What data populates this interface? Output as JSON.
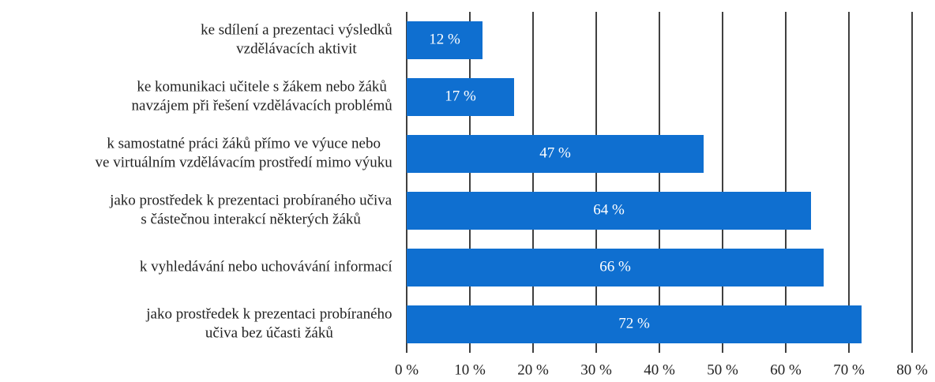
{
  "chart_data": {
    "type": "barh",
    "categories": [
      [
        "ke sdílení a prezentaci výsledků",
        "vzdělávacích aktivit"
      ],
      [
        "ke komunikaci učitele s žákem nebo žáků",
        "navzájem při řešení vzdělávacích problémů"
      ],
      [
        "k samostatné práci žáků přímo ve výuce nebo",
        "ve virtuálním vzdělávacím prostředí mimo výuku"
      ],
      [
        "jako prostředek k prezentaci probíraného učiva",
        "s částečnou interakcí některých žáků"
      ],
      [
        "k vyhledávání nebo uchovávání informací"
      ],
      [
        "jako prostředek k prezentaci probíraného",
        "učiva bez účasti žáků"
      ]
    ],
    "values": [
      12,
      17,
      47,
      64,
      66,
      72
    ],
    "value_labels": [
      "12 %",
      "17 %",
      "47 %",
      "64 %",
      "66 %",
      "72 %"
    ],
    "color": "#0f6fd0",
    "xlim": [
      0,
      80
    ],
    "xticks": [
      {
        "value": 0,
        "label": "0 %"
      },
      {
        "value": 10,
        "label": "10 %"
      },
      {
        "value": 20,
        "label": "20 %"
      },
      {
        "value": 30,
        "label": "30 %"
      },
      {
        "value": 40,
        "label": "40 %"
      },
      {
        "value": 50,
        "label": "50 %"
      },
      {
        "value": 60,
        "label": "60 %"
      },
      {
        "value": 70,
        "label": "70 %"
      },
      {
        "value": 80,
        "label": "80 %"
      }
    ],
    "grid": true
  }
}
